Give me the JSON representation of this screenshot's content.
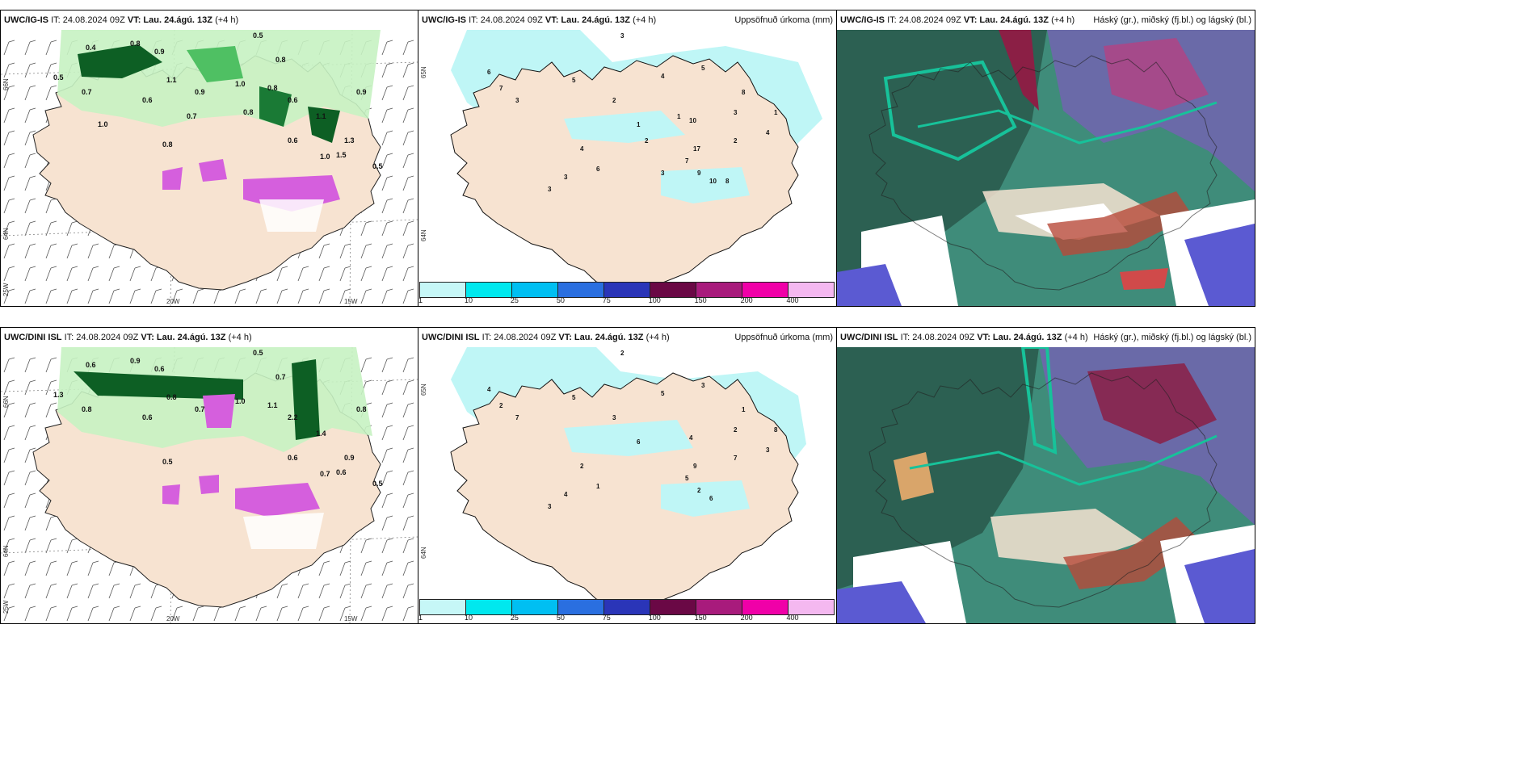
{
  "top_row": {
    "wind_panel": {
      "model": "UWC/IG-IS",
      "it_text": "IT: 24.08.2024 09Z",
      "vt_text": "VT: Lau. 24.ágú. 13Z",
      "lead": "(+4 h)",
      "lat_labels": [
        "66N",
        "64N"
      ],
      "lon_labels": [
        "25W",
        "20W",
        "15W"
      ],
      "values": [
        "0.4",
        "0.8",
        "0.9",
        "0.5",
        "0.8",
        "0.5",
        "0.7",
        "0.6",
        "0.8",
        "0.9",
        "1.0",
        "0.8",
        "0.6",
        "1.1",
        "1.3",
        "0.9",
        "1.0",
        "0.5",
        "1.1",
        "1.5",
        "0.6",
        "0.8",
        "0.7",
        "1.0"
      ]
    },
    "precip_panel": {
      "model": "UWC/IG-IS",
      "it_text": "IT: 24.08.2024 09Z",
      "vt_text": "VT: Lau. 24.ágú. 13Z",
      "lead": "(+4 h)",
      "right_title": "Uppsöfnuð úrkoma (mm)",
      "lat_labels": [
        "65N",
        "64N"
      ],
      "values": [
        "3",
        "4",
        "5",
        "6",
        "7",
        "3",
        "5",
        "2",
        "1",
        "10",
        "3",
        "8",
        "17",
        "2",
        "4",
        "1",
        "4",
        "6",
        "3",
        "3",
        "7",
        "9",
        "10",
        "8",
        "1",
        "2",
        "3"
      ]
    },
    "cloud_panel": {
      "model": "UWC/IG-IS",
      "it_text": "IT: 24.08.2024 09Z",
      "vt_text": "VT: Lau. 24.ágú. 13Z",
      "lead": "(+4 h)",
      "right_title": "Háský (gr.), miðský (fj.bl.) og lágský (bl.)"
    }
  },
  "bottom_row": {
    "wind_panel": {
      "model": "UWC/DINI ISL",
      "it_text": "IT: 24.08.2024 09Z",
      "vt_text": "VT: Lau. 24.ágú. 13Z",
      "lead": "(+4 h)",
      "lat_labels": [
        "66N",
        "64N"
      ],
      "lon_labels": [
        "25W",
        "20W",
        "15W"
      ],
      "values": [
        "0.6",
        "0.9",
        "0.6",
        "0.5",
        "0.7",
        "1.3",
        "0.8",
        "0.6",
        "0.5",
        "0.7",
        "1.0",
        "1.1",
        "2.2",
        "1.4",
        "0.9",
        "0.8",
        "0.7",
        "0.5",
        "0.8",
        "0.6",
        "0.6"
      ]
    },
    "precip_panel": {
      "model": "UWC/DINI ISL",
      "it_text": "IT: 24.08.2024 09Z",
      "vt_text": "VT: Lau. 24.ágú. 13Z",
      "lead": "(+4 h)",
      "right_title": "Uppsöfnuð úrkoma (mm)",
      "lat_labels": [
        "65N",
        "64N"
      ],
      "values": [
        "2",
        "5",
        "3",
        "4",
        "2",
        "7",
        "5",
        "3",
        "6",
        "4",
        "2",
        "1",
        "9",
        "7",
        "3",
        "8",
        "2",
        "1",
        "4",
        "3",
        "5",
        "2",
        "6"
      ]
    },
    "cloud_panel": {
      "model": "UWC/DINI ISL",
      "it_text": "IT: 24.08.2024 09Z",
      "vt_text": "VT: Lau. 24.ágú. 13Z",
      "lead": "(+4 h)",
      "right_title": "Háský (gr.), miðský (fj.bl.) og lágský (bl.)"
    }
  },
  "colorbar": {
    "labels": [
      "1",
      "10",
      "25",
      "50",
      "75",
      "100",
      "150",
      "200",
      "400"
    ],
    "colors": [
      "#c6f7f7",
      "#00e8ee",
      "#00bff2",
      "#2a6fe0",
      "#2a35b8",
      "#6a0845",
      "#a81b7c",
      "#f000a8",
      "#f4b8f0"
    ]
  },
  "theme": {
    "land": "#f7e3d1",
    "coast": "#111111",
    "precip_light": "#bff6f6",
    "green_light": "#c7f2c2",
    "green_mid": "#4fc063",
    "green_dark": "#0d5f24",
    "magenta": "#d55fdd",
    "cloud_dark": "#2c6052",
    "cloud_teal": "#17c29a",
    "cloud_red": "#8b1f45",
    "cloud_blue": "#5b5ad2"
  }
}
